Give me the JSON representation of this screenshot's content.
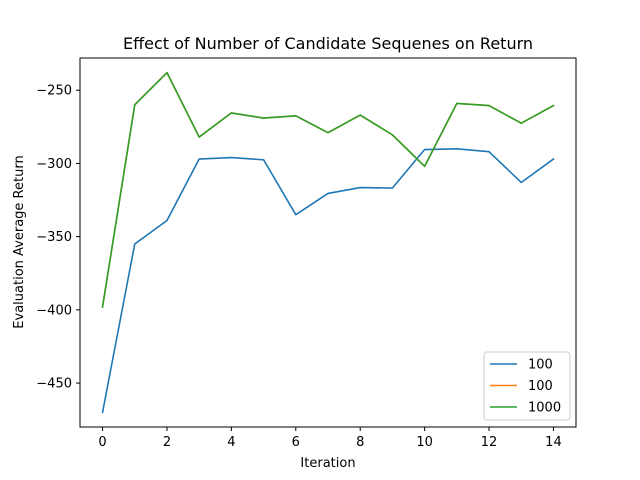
{
  "chart_data": {
    "type": "line",
    "title": "Effect of Number of Candidate Sequenes on Return",
    "xlabel": "Iteration",
    "ylabel": "Evaluation Average Return",
    "xlim": [
      -0.7,
      14.7
    ],
    "ylim": [
      -480,
      -228
    ],
    "xticks": [
      0,
      2,
      4,
      6,
      8,
      10,
      12,
      14
    ],
    "yticks": [
      -450,
      -400,
      -350,
      -300,
      -250
    ],
    "legend_position": "lower-right",
    "grid": false,
    "x": [
      0,
      1,
      2,
      3,
      4,
      5,
      6,
      7,
      8,
      9,
      10,
      11,
      12,
      13,
      14
    ],
    "series": [
      {
        "name": "100",
        "color": "#1f77b4",
        "values": [
          -470,
          -355,
          -339,
          -297,
          -296,
          -297.5,
          -335,
          -320.5,
          -316.5,
          -316.8,
          -290.5,
          -290,
          -292,
          -313,
          -297
        ]
      },
      {
        "name": "100",
        "color": "#ff7f0e",
        "values": [
          -398,
          -260,
          -238,
          -282,
          -265.5,
          -269,
          -267.5,
          -279,
          -267,
          -280.5,
          -302,
          -259,
          -260.5,
          -272.5,
          -260.5
        ]
      },
      {
        "name": "1000",
        "color": "#2ca02c",
        "values": [
          -398,
          -260,
          -238,
          -282,
          -265.5,
          -269,
          -267.5,
          -279,
          -267,
          -280.5,
          -302,
          -259,
          -260.5,
          -272.5,
          -260.5
        ]
      }
    ]
  }
}
